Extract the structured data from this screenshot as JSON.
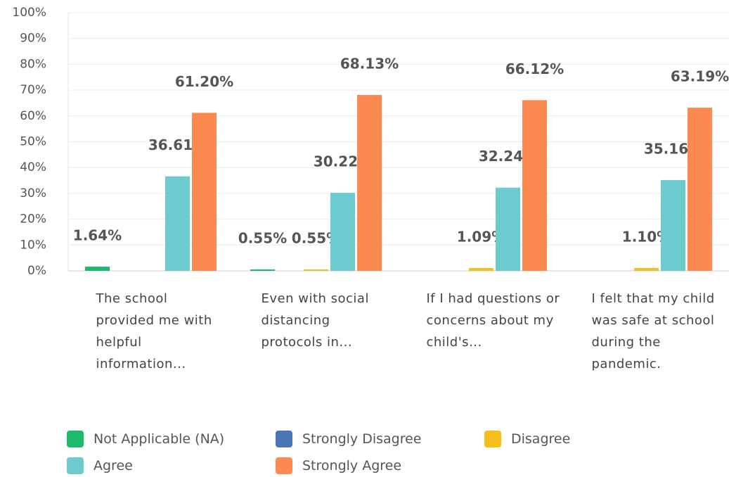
{
  "chart_data": {
    "type": "bar",
    "categories": [
      "The school provided me with helpful information...",
      "Even with social distancing protocols in...",
      "If I had questions or concerns about my child's...",
      "I felt that my child was safe at school during the pandemic."
    ],
    "series": [
      {
        "name": "Not Applicable (NA)",
        "color": "#1db96c",
        "values": [
          1.64,
          0.55,
          null,
          null
        ],
        "value_labels": [
          "1.64%",
          "0.55%",
          null,
          null
        ]
      },
      {
        "name": "Strongly Disagree",
        "color": "#4a76b3",
        "values": [
          null,
          null,
          null,
          null
        ],
        "value_labels": [
          null,
          null,
          null,
          null
        ]
      },
      {
        "name": "Disagree",
        "color": "#f5be1a",
        "values": [
          null,
          0.55,
          1.09,
          1.1
        ],
        "value_labels": [
          null,
          "0.55%",
          "1.09%",
          "1.10%"
        ]
      },
      {
        "name": "Agree",
        "color": "#6bcbcf",
        "values": [
          36.61,
          30.22,
          32.24,
          35.16
        ],
        "value_labels": [
          "36.61%",
          "30.22%",
          "32.24%",
          "35.16%"
        ]
      },
      {
        "name": "Strongly Agree",
        "color": "#fa8a50",
        "values": [
          61.2,
          68.13,
          66.12,
          63.19
        ],
        "value_labels": [
          "61.20%",
          "68.13%",
          "66.12%",
          "63.19%"
        ]
      }
    ],
    "ylim": [
      0,
      100
    ],
    "yticks": [
      {
        "value": 0,
        "label": "0%"
      },
      {
        "value": 10,
        "label": "10%"
      },
      {
        "value": 20,
        "label": "20%"
      },
      {
        "value": 30,
        "label": "30%"
      },
      {
        "value": 40,
        "label": "40%"
      },
      {
        "value": 50,
        "label": "50%"
      },
      {
        "value": 60,
        "label": "60%"
      },
      {
        "value": 70,
        "label": "70%"
      },
      {
        "value": 80,
        "label": "80%"
      },
      {
        "value": 90,
        "label": "90%"
      },
      {
        "value": 100,
        "label": "100%"
      }
    ],
    "grid": true
  }
}
